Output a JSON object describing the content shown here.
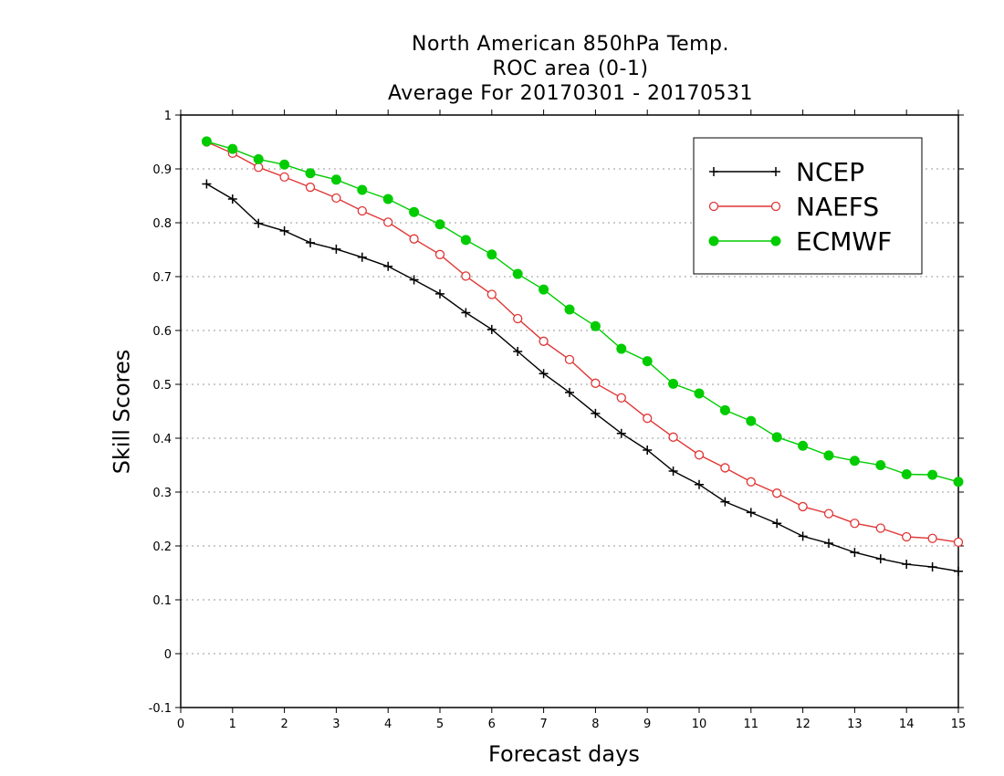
{
  "chart_data": {
    "type": "line",
    "title_lines": [
      "North American 850hPa Temp.",
      "ROC area (0-1)",
      "Average For 20170301 - 20170531"
    ],
    "xlabel": "Forecast days",
    "ylabel": "Skill Scores",
    "xlim": [
      0,
      15
    ],
    "ylim": [
      -0.1,
      1
    ],
    "x_ticks": [
      0,
      1,
      2,
      3,
      4,
      5,
      6,
      7,
      8,
      9,
      10,
      11,
      12,
      13,
      14,
      15
    ],
    "y_ticks": [
      -0.1,
      0,
      0.1,
      0.2,
      0.3,
      0.4,
      0.5,
      0.6,
      0.7,
      0.8,
      0.9,
      1
    ],
    "y_tick_labels": [
      "-0.1",
      "0",
      "0.1",
      "0.2",
      "0.3",
      "0.4",
      "0.5",
      "0.6",
      "0.7",
      "0.8",
      "0.9",
      "1"
    ],
    "grid": "horizontal dotted",
    "legend_position": "top-right",
    "x": [
      0.5,
      1,
      1.5,
      2,
      2.5,
      3,
      3.5,
      4,
      4.5,
      5,
      5.5,
      6,
      6.5,
      7,
      7.5,
      8,
      8.5,
      9,
      9.5,
      10,
      10.5,
      11,
      11.5,
      12,
      12.5,
      13,
      13.5,
      14,
      14.5,
      15
    ],
    "series": [
      {
        "name": "NCEP",
        "color": "#000000",
        "marker": "plus",
        "values": [
          0.872,
          0.844,
          0.799,
          0.785,
          0.763,
          0.751,
          0.736,
          0.719,
          0.694,
          0.668,
          0.633,
          0.602,
          0.561,
          0.52,
          0.485,
          0.446,
          0.409,
          0.378,
          0.339,
          0.314,
          0.282,
          0.262,
          0.242,
          0.218,
          0.205,
          0.188,
          0.176,
          0.166,
          0.161,
          0.153
        ]
      },
      {
        "name": "NAEFS",
        "color": "#e03535",
        "marker": "open-circle",
        "values": [
          0.95,
          0.929,
          0.903,
          0.885,
          0.866,
          0.846,
          0.822,
          0.801,
          0.77,
          0.741,
          0.701,
          0.667,
          0.622,
          0.58,
          0.546,
          0.502,
          0.475,
          0.437,
          0.402,
          0.369,
          0.345,
          0.319,
          0.298,
          0.273,
          0.26,
          0.242,
          0.233,
          0.217,
          0.214,
          0.207
        ]
      },
      {
        "name": "ECMWF",
        "color": "#00cc00",
        "marker": "filled-circle",
        "values": [
          0.951,
          0.937,
          0.918,
          0.908,
          0.892,
          0.88,
          0.861,
          0.844,
          0.82,
          0.797,
          0.768,
          0.741,
          0.705,
          0.676,
          0.639,
          0.608,
          0.566,
          0.543,
          0.501,
          0.483,
          0.452,
          0.432,
          0.402,
          0.386,
          0.368,
          0.358,
          0.35,
          0.333,
          0.332,
          0.319
        ]
      }
    ]
  }
}
